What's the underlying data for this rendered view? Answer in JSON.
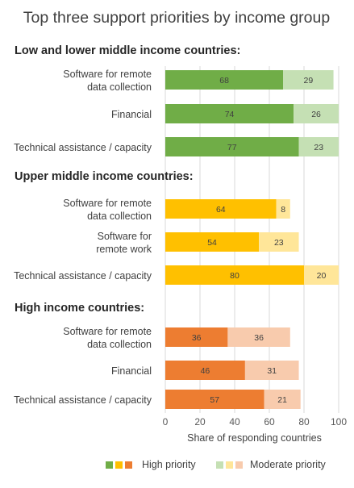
{
  "chart_data": {
    "type": "bar",
    "title": "Top three support priorities by income group",
    "xlabel": "Share of responding countries",
    "xlim": [
      0,
      100
    ],
    "xticks": [
      0,
      20,
      40,
      60,
      80,
      100
    ],
    "grid": true,
    "stacked": true,
    "orientation": "horizontal",
    "legend": {
      "placement": "bottom",
      "entries": [
        {
          "label": "High priority",
          "swatches": [
            "#70ad47",
            "#ffc000",
            "#ed7d31"
          ]
        },
        {
          "label": "Moderate priority",
          "swatches": [
            "#c5e0b4",
            "#ffe699",
            "#f8cbad"
          ]
        }
      ]
    },
    "groups": [
      {
        "name": "Low and lower middle income countries:",
        "colors": {
          "high": "#70ad47",
          "moderate": "#c5e0b4"
        },
        "categories": [
          {
            "label": [
              "Software for remote",
              "data collection"
            ],
            "high": 68,
            "moderate": 29
          },
          {
            "label": [
              "Financial"
            ],
            "high": 74,
            "moderate": 26
          },
          {
            "label": [
              "Technical assistance / capacity"
            ],
            "high": 77,
            "moderate": 23
          }
        ]
      },
      {
        "name": "Upper middle income countries:",
        "colors": {
          "high": "#ffc000",
          "moderate": "#ffe699"
        },
        "categories": [
          {
            "label": [
              "Software for remote",
              "data collection"
            ],
            "high": 64,
            "moderate": 8
          },
          {
            "label": [
              "Software for",
              "remote work"
            ],
            "high": 54,
            "moderate": 23
          },
          {
            "label": [
              "Technical assistance / capacity"
            ],
            "high": 80,
            "moderate": 20
          }
        ]
      },
      {
        "name": "High income countries:",
        "colors": {
          "high": "#ed7d31",
          "moderate": "#f8cbad"
        },
        "categories": [
          {
            "label": [
              "Software for remote",
              "data collection"
            ],
            "high": 36,
            "moderate": 36
          },
          {
            "label": [
              "Financial"
            ],
            "high": 46,
            "moderate": 31
          },
          {
            "label": [
              "Technical assistance / capacity"
            ],
            "high": 57,
            "moderate": 21
          }
        ]
      }
    ]
  }
}
